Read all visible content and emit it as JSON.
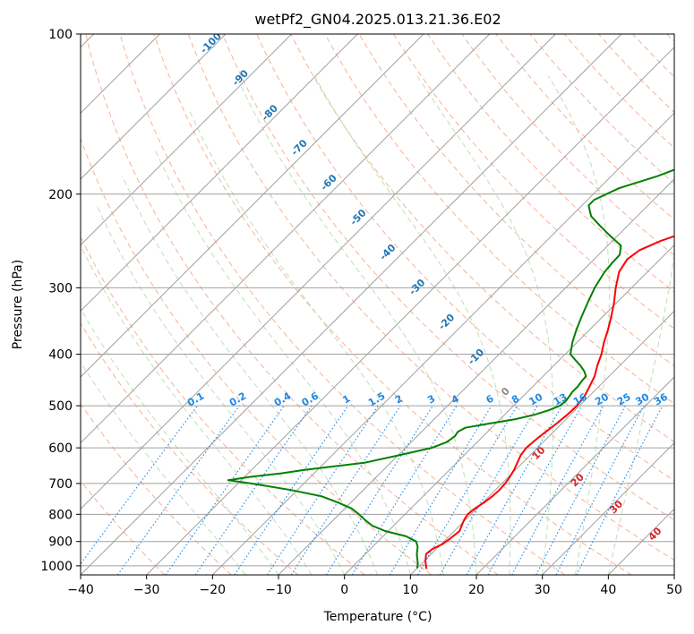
{
  "chart_data": {
    "type": "line",
    "title": "wetPf2_GN04.2025.013.21.36.E02",
    "xlabel": "Temperature (°C)",
    "ylabel": "Pressure (hPa)",
    "xlim": [
      -40,
      50
    ],
    "ylim": [
      1040,
      100
    ],
    "y_scale": "log",
    "x_ticks": [
      -40,
      -30,
      -20,
      -10,
      0,
      10,
      20,
      30,
      40,
      50
    ],
    "y_ticks": [
      100,
      200,
      300,
      400,
      500,
      600,
      700,
      800,
      900,
      1000
    ],
    "grid": true,
    "colors": {
      "temperature": "#ff0000",
      "dewpoint": "#008000",
      "isotherm": "#a0a0a0",
      "isobar": "#a0a0a0",
      "dry_adiabat": "#f4a582",
      "moist_adiabat": "#b8dbb0",
      "mixing_ratio": "#1e88e5",
      "theta_e_label": "#1f77b4",
      "wetbulb_label": "#d62728"
    },
    "series": [
      {
        "key": "temperature",
        "pressure_hPa": [
          1013,
          1000,
          980,
          950,
          930,
          910,
          890,
          860,
          840,
          820,
          800,
          780,
          760,
          740,
          720,
          700,
          680,
          660,
          640,
          620,
          600,
          580,
          560,
          540,
          520,
          500,
          480,
          460,
          440,
          420,
          400,
          380,
          360,
          340,
          320,
          300,
          280,
          265,
          255,
          245,
          235,
          225,
          210,
          190,
          170,
          150,
          140,
          130,
          120,
          110,
          100
        ],
        "temperature_C": [
          11.5,
          11.0,
          10.2,
          9.2,
          9.4,
          10.2,
          10.5,
          10.8,
          10.3,
          9.8,
          9.5,
          9.7,
          10.2,
          10.5,
          10.6,
          10.5,
          10.2,
          9.8,
          9.2,
          8.6,
          8.3,
          8.5,
          8.8,
          9.2,
          9.5,
          9.6,
          9.3,
          8.6,
          7.8,
          6.6,
          5.5,
          4.1,
          2.8,
          1.3,
          -0.4,
          -2.4,
          -4.3,
          -5.0,
          -4.5,
          -2.7,
          0.0,
          2.9,
          5.9,
          8.7,
          11.2,
          13.7,
          15.2,
          16.4,
          17.7,
          20.4,
          24.0
        ]
      },
      {
        "key": "dewpoint",
        "pressure_hPa": [
          1010,
          990,
          970,
          950,
          920,
          900,
          880,
          860,
          840,
          820,
          800,
          780,
          760,
          740,
          720,
          700,
          690,
          680,
          670,
          660,
          640,
          620,
          600,
          585,
          570,
          560,
          550,
          540,
          530,
          520,
          510,
          500,
          490,
          480,
          470,
          460,
          450,
          440,
          430,
          420,
          410,
          400,
          380,
          360,
          340,
          320,
          300,
          280,
          270,
          260,
          250,
          240,
          230,
          220,
          210,
          205,
          195,
          185,
          175,
          165,
          150,
          140,
          130,
          120,
          115,
          110,
          100
        ],
        "dewpoint_C": [
          10.0,
          9.4,
          8.6,
          7.8,
          6.8,
          5.8,
          3.5,
          -0.5,
          -3.3,
          -5.2,
          -7.0,
          -9.0,
          -12.0,
          -15.4,
          -21.0,
          -28.0,
          -32.0,
          -29.0,
          -25.0,
          -22.0,
          -14.0,
          -10.0,
          -6.0,
          -4.6,
          -4.3,
          -4.5,
          -4.0,
          -1.0,
          2.3,
          4.5,
          6.0,
          7.0,
          7.2,
          7.0,
          6.8,
          6.8,
          6.6,
          6.5,
          5.4,
          4.0,
          2.4,
          0.8,
          -0.7,
          -2.0,
          -3.2,
          -4.4,
          -5.6,
          -6.5,
          -6.7,
          -6.8,
          -8.0,
          -11.0,
          -14.0,
          -17.0,
          -19.0,
          -19.0,
          -17.0,
          -13.0,
          -9.8,
          -7.2,
          -4.5,
          -2.0,
          0.8,
          4.0,
          6.5,
          8.5,
          10.5
        ]
      }
    ],
    "mixing_ratio_labels": [
      "0.1",
      "0.2",
      "0.4",
      "0.6",
      "1",
      "1.5",
      "2",
      "3",
      "4",
      "6",
      "8",
      "10",
      "13",
      "16",
      "20",
      "25",
      "30",
      "36"
    ],
    "theta_e_labels": [
      "-100",
      "-90",
      "-80",
      "-70",
      "-60",
      "-50",
      "-40",
      "-30",
      "-20",
      "-10",
      "0"
    ],
    "wetbulb_labels": [
      "10",
      "20",
      "30",
      "40"
    ]
  }
}
